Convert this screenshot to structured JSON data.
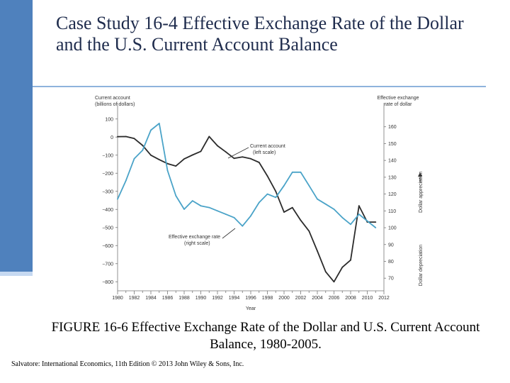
{
  "title": "Case Study 16-4  Effective Exchange Rate of the Dollar and the U.S. Current Account Balance",
  "caption": "FIGURE 16-6 Effective Exchange Rate of the Dollar and U.S. Current Account Balance, 1980-2005.",
  "credit": "Salvatore: International Economics, 11th Edition  © 2013 John Wiley & Sons, Inc.",
  "colors": {
    "accent": "#4f81bd",
    "current_account": "#2b2b2b",
    "exchange_rate": "#4aa3c8"
  },
  "chart_data": {
    "type": "line",
    "xlabel": "Year",
    "left_axis_title": [
      "Current account",
      "(billions of dollars)"
    ],
    "right_axis_title": [
      "Effective exchange",
      "rate of dollar"
    ],
    "left_ylim": [
      -850,
      150
    ],
    "right_ylim": [
      62.5,
      170
    ],
    "left_ticks": [
      100,
      0,
      -100,
      -200,
      -300,
      -400,
      -500,
      -600,
      -700,
      -800
    ],
    "left_tick_labels": [
      "100",
      "0",
      "−100",
      "−200",
      "−300",
      "−400",
      "−500",
      "−600",
      "−700",
      "−800"
    ],
    "right_ticks": [
      160,
      150,
      140,
      130,
      120,
      110,
      100,
      90,
      80,
      70
    ],
    "right_tick_labels": [
      "160",
      "150",
      "140",
      "130",
      "120",
      "110",
      "100",
      "90",
      "80",
      "70"
    ],
    "x_tick_labels": [
      "1980",
      "1982",
      "1984",
      "1986",
      "1988",
      "1990",
      "1992",
      "1994",
      "1996",
      "1998",
      "2000",
      "2002",
      "2004",
      "2006",
      "2008",
      "2010",
      "2012"
    ],
    "xlim": [
      1980,
      2012
    ],
    "series": [
      {
        "name": "Current account (left scale)",
        "axis": "left",
        "x": [
          1980,
          1981,
          1982,
          1983,
          1984,
          1985,
          1986,
          1987,
          1988,
          1989,
          1990,
          1991,
          1992,
          1993,
          1994,
          1995,
          1996,
          1997,
          1998,
          1999,
          2000,
          2001,
          2002,
          2003,
          2004,
          2005,
          2006,
          2007,
          2008,
          2009,
          2010,
          2011
        ],
        "values": [
          2,
          3,
          -8,
          -46,
          -100,
          -125,
          -147,
          -160,
          -121,
          -99,
          -79,
          3,
          -48,
          -82,
          -118,
          -110,
          -120,
          -140,
          -215,
          -300,
          -415,
          -390,
          -460,
          -520,
          -630,
          -745,
          -800,
          -720,
          -680,
          -380,
          -470,
          -470
        ]
      },
      {
        "name": "Effective exchange rate (right scale)",
        "axis": "right",
        "x": [
          1980,
          1981,
          1982,
          1983,
          1984,
          1985,
          1986,
          1987,
          1988,
          1989,
          1990,
          1991,
          1992,
          1993,
          1994,
          1995,
          1996,
          1997,
          1998,
          1999,
          2000,
          2001,
          2002,
          2003,
          2004,
          2005,
          2006,
          2007,
          2008,
          2009,
          2010,
          2011
        ],
        "values": [
          117,
          128,
          141,
          146,
          158,
          162,
          134,
          119,
          111,
          116,
          113,
          112,
          110,
          108,
          106,
          101,
          107,
          115,
          120,
          118,
          125,
          133,
          133,
          125,
          117,
          114,
          111,
          106,
          102,
          108,
          104,
          100
        ]
      }
    ],
    "annotations": {
      "current_account": [
        "Current account",
        "(left scale)"
      ],
      "exchange_rate": [
        "Effective exchange rate",
        "(right scale)"
      ],
      "arrow_up": "Dollar appreciation",
      "arrow_down": "Dollar depreciation"
    }
  }
}
